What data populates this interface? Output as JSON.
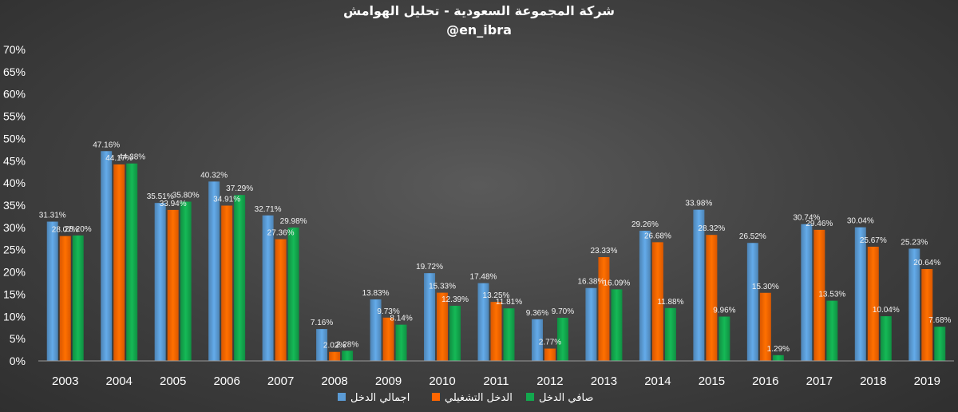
{
  "chart_data": {
    "type": "bar",
    "title": "شركة المجموعة السعودية - تحليل الهوامش",
    "subtitle": "@en_ibra",
    "categories": [
      "2003",
      "2004",
      "2005",
      "2006",
      "2007",
      "2008",
      "2009",
      "2010",
      "2011",
      "2012",
      "2013",
      "2014",
      "2015",
      "2016",
      "2017",
      "2018",
      "2019"
    ],
    "ylim": [
      0,
      70
    ],
    "yticks": [
      "0%",
      "5%",
      "10%",
      "15%",
      "20%",
      "25%",
      "30%",
      "35%",
      "40%",
      "45%",
      "50%",
      "55%",
      "60%",
      "65%",
      "70%"
    ],
    "ytick_values": [
      0,
      5,
      10,
      15,
      20,
      25,
      30,
      35,
      40,
      45,
      50,
      55,
      60,
      65,
      70
    ],
    "grid": false,
    "legend_position": "bottom",
    "series": [
      {
        "name": "اجمالي الدخل",
        "color": "#5b9bd5",
        "values": [
          31.31,
          47.16,
          35.51,
          40.32,
          32.71,
          7.16,
          13.83,
          19.72,
          17.48,
          9.36,
          16.38,
          29.26,
          33.98,
          26.52,
          30.74,
          30.04,
          25.23
        ],
        "labels": [
          "31.31%",
          "47.16%",
          "35.51%",
          "40.32%",
          "32.71%",
          "7.16%",
          "13.83%",
          "19.72%",
          "17.48%",
          "9.36%",
          "16.38%",
          "29.26%",
          "33.98%",
          "26.52%",
          "30.74%",
          "30.04%",
          "25.23%"
        ]
      },
      {
        "name": "الدخل التشغيلي",
        "color": "#ff6600",
        "values": [
          28.07,
          44.17,
          33.94,
          34.91,
          27.36,
          2.02,
          9.73,
          15.33,
          13.25,
          2.77,
          23.33,
          26.68,
          28.32,
          15.3,
          29.46,
          25.67,
          20.64
        ],
        "labels": [
          "28.07%",
          "44.17%",
          "33.94%",
          "34.91%",
          "27.36%",
          "2.02%",
          "9.73%",
          "15.33%",
          "13.25%",
          "2.77%",
          "23.33%",
          "26.68%",
          "28.32%",
          "15.30%",
          "29.46%",
          "25.67%",
          "20.64%"
        ]
      },
      {
        "name": "صافي الدخل",
        "color": "#13a84e",
        "values": [
          28.2,
          44.38,
          35.8,
          37.29,
          29.98,
          2.28,
          8.14,
          12.39,
          11.81,
          9.7,
          16.09,
          11.88,
          9.96,
          1.29,
          13.53,
          10.04,
          7.68
        ],
        "labels": [
          "28.20%",
          "44.38%",
          "35.80%",
          "37.29%",
          "29.98%",
          "2.28%",
          "8.14%",
          "12.39%",
          "11.81%",
          "9.70%",
          "16.09%",
          "11.88%",
          "9.96%",
          "1.29%",
          "13.53%",
          "10.04%",
          "7.68%"
        ]
      }
    ]
  }
}
